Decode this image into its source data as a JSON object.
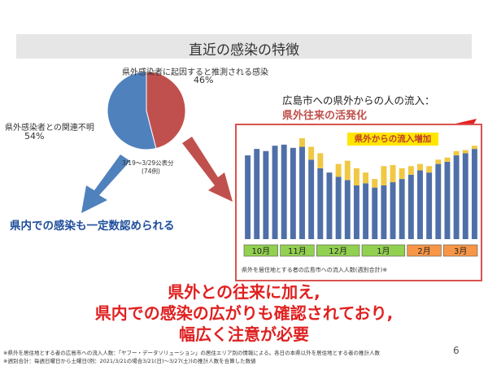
{
  "title": "直近の感染の特徴",
  "pie": {
    "label_outside": "県外感染者に起因すると推測される感染",
    "pct_outside": "46%",
    "label_unknown": "県外感染者との関連不明",
    "pct_unknown": "54%",
    "note_line1": "3/19～3/29公表分",
    "note_line2": "(74例)",
    "slices": [
      {
        "name": "県外感染者との関連不明",
        "value": 54,
        "color": "#4f81bd"
      },
      {
        "name": "県外感染者に起因すると推測される感染",
        "value": 46,
        "color": "#c0504d"
      }
    ]
  },
  "blue_message": "県内での感染も一定数認められる",
  "right_heading": "広島市への県外からの人の流入：",
  "right_subheading": "県外往来の活発化",
  "chart_callout": "県外からの流入増加",
  "chart_caption": "県外を居住地とする者の広島市への流入人数(週別合計)※",
  "chart_data": {
    "type": "bar",
    "stacked": true,
    "months": [
      {
        "label": "10月",
        "color": "#92d050"
      },
      {
        "label": "11月",
        "color": "#92d050"
      },
      {
        "label": "12月",
        "color": "#92d050"
      },
      {
        "label": "1月",
        "color": "#92d050"
      },
      {
        "label": "2月",
        "color": "#f79646"
      },
      {
        "label": "3月",
        "color": "#f79646"
      }
    ],
    "series": [
      {
        "color": "#4f6fa8",
        "values": [
          78,
          84,
          82,
          87,
          88,
          85,
          86,
          74,
          66,
          62,
          58,
          55,
          50,
          52,
          48,
          50,
          53,
          56,
          60,
          64,
          62,
          70,
          72,
          78,
          80,
          84
        ]
      },
      {
        "color": "#f0c842",
        "values": [
          0,
          0,
          0,
          0,
          0,
          0,
          8,
          12,
          14,
          0,
          12,
          18,
          16,
          10,
          8,
          18,
          16,
          10,
          8,
          6,
          6,
          4,
          4,
          4,
          3,
          3
        ]
      }
    ],
    "ylim": [
      0,
      100
    ]
  },
  "big_message": [
    "県外との往来に加え,",
    "県内での感染の広がりも確認されており,",
    "幅広く注意が必要"
  ],
  "page_number": "6",
  "footnotes": [
    "※県外を居住地とする者の広島市への流入人数：「ヤフー・データソリューション」の居住エリア別の情報による。各日の本県以外を居住地とする者の推計人数",
    "※週別合計：毎週日曜日から土曜日(例：2021/3/21の場合3/21(日)～3/27(土))の推計人数を合算した数値"
  ]
}
